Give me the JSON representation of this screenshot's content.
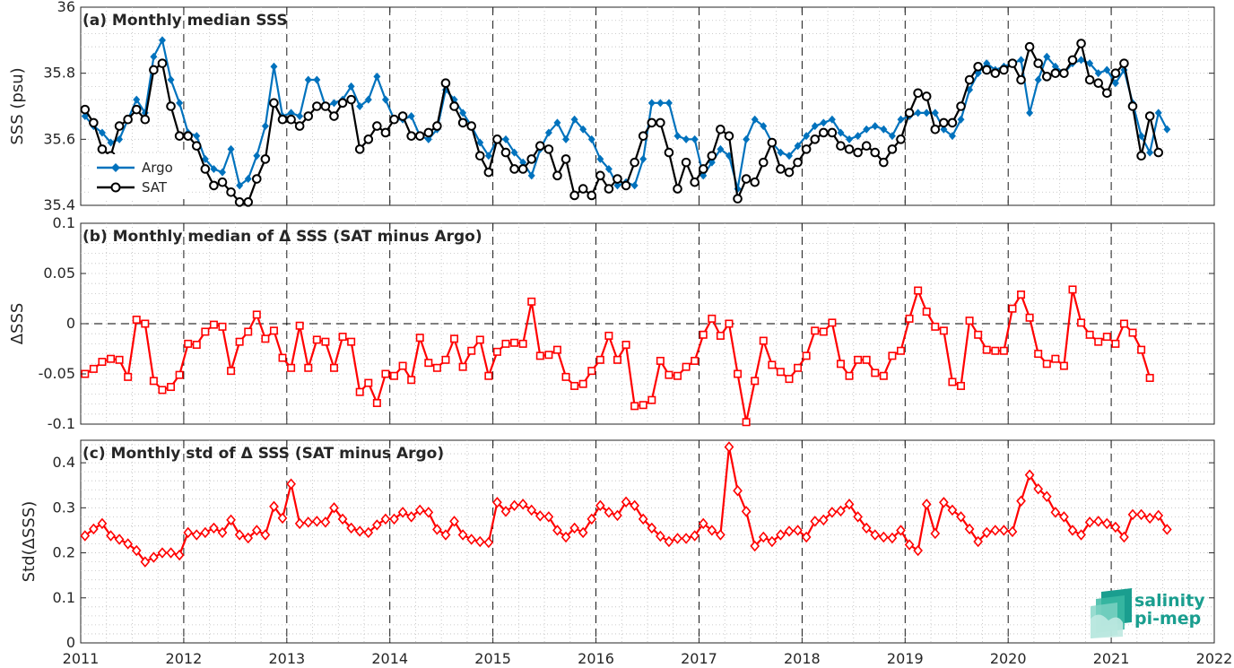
{
  "colors": {
    "argo": "#0072bd",
    "sat": "#000000",
    "delta": "#ff0000",
    "logo": "#1a9e8f"
  },
  "logo": {
    "line1": "salinity",
    "line2": "pi-mep"
  },
  "x_tick_labels": [
    "2011",
    "2012",
    "2013",
    "2014",
    "2015",
    "2016",
    "2017",
    "2018",
    "2019",
    "2020",
    "2021",
    "2022"
  ],
  "chart_data": [
    {
      "type": "line",
      "title": "(a) Monthly median SSS",
      "ylabel": "SSS (psu)",
      "xlim": [
        2011,
        2022
      ],
      "ylim": [
        35.4,
        36
      ],
      "yticks": [
        35.4,
        35.6,
        35.8,
        36
      ],
      "ytick_labels": [
        "35.4",
        "35.6",
        "35.8",
        "36"
      ],
      "grid": true,
      "legend": "left",
      "x_start": 2011.0,
      "x_step_months": 1,
      "series": [
        {
          "name": "Argo",
          "marker": "diamond-filled",
          "color": "#0072bd",
          "values": [
            35.67,
            35.64,
            35.62,
            35.59,
            35.6,
            35.66,
            35.72,
            35.68,
            35.85,
            35.9,
            35.78,
            35.71,
            35.62,
            35.61,
            35.54,
            35.51,
            35.5,
            35.57,
            35.46,
            35.48,
            35.55,
            35.64,
            35.82,
            35.67,
            35.68,
            35.67,
            35.78,
            35.78,
            35.7,
            35.71,
            35.72,
            35.76,
            35.7,
            35.72,
            35.79,
            35.72,
            35.66,
            35.66,
            35.67,
            35.61,
            35.6,
            35.63,
            35.75,
            35.72,
            35.68,
            35.64,
            35.59,
            35.55,
            35.6,
            35.6,
            35.56,
            35.53,
            35.49,
            35.57,
            35.62,
            35.65,
            35.6,
            35.66,
            35.63,
            35.6,
            35.54,
            35.51,
            35.46,
            35.47,
            35.46,
            35.54,
            35.71,
            35.71,
            35.71,
            35.61,
            35.6,
            35.6,
            35.49,
            35.53,
            35.57,
            35.55,
            35.45,
            35.6,
            35.66,
            35.64,
            35.59,
            35.56,
            35.55,
            35.58,
            35.61,
            35.64,
            35.65,
            35.66,
            35.62,
            35.6,
            35.61,
            35.63,
            35.64,
            35.63,
            35.61,
            35.66,
            35.67,
            35.68,
            35.68,
            35.68,
            35.63,
            35.61,
            35.66,
            35.75,
            35.8,
            35.83,
            35.81,
            35.82,
            35.83,
            35.84,
            35.68,
            35.78,
            35.85,
            35.82,
            35.8,
            35.83,
            35.84,
            35.83,
            35.8,
            35.81,
            35.77,
            35.81,
            35.71,
            35.61,
            35.56,
            35.68,
            35.63
          ]
        },
        {
          "name": "SAT",
          "marker": "circle-open",
          "color": "#000000",
          "values": [
            35.69,
            35.65,
            35.57,
            35.55,
            35.64,
            35.66,
            35.69,
            35.66,
            35.81,
            35.83,
            35.7,
            35.61,
            35.61,
            35.58,
            35.51,
            35.46,
            35.47,
            35.44,
            35.41,
            35.41,
            35.48,
            35.54,
            35.71,
            35.66,
            35.66,
            35.64,
            35.67,
            35.7,
            35.7,
            35.67,
            35.71,
            35.72,
            35.57,
            35.6,
            35.64,
            35.62,
            35.66,
            35.67,
            35.61,
            35.61,
            35.62,
            35.64,
            35.77,
            35.7,
            35.65,
            35.64,
            35.55,
            35.5,
            35.6,
            35.56,
            35.51,
            35.51,
            35.54,
            35.58,
            35.57,
            35.49,
            35.54,
            35.43,
            35.45,
            35.43,
            35.49,
            35.45,
            35.48,
            35.46,
            35.53,
            35.61,
            35.65,
            35.65,
            35.56,
            35.45,
            35.53,
            35.47,
            35.51,
            35.55,
            35.63,
            35.61,
            35.42,
            35.48,
            35.47,
            35.53,
            35.59,
            35.51,
            35.5,
            35.53,
            35.57,
            35.6,
            35.62,
            35.62,
            35.58,
            35.57,
            35.56,
            35.58,
            35.56,
            35.53,
            35.57,
            35.6,
            35.68,
            35.74,
            35.73,
            35.63,
            35.65,
            35.65,
            35.7,
            35.78,
            35.82,
            35.81,
            35.8,
            35.81,
            35.83,
            35.78,
            35.88,
            35.83,
            35.79,
            35.8,
            35.8,
            35.84,
            35.89,
            35.78,
            35.77,
            35.74,
            35.8,
            35.83,
            35.7,
            35.55,
            35.67,
            35.56
          ]
        }
      ]
    },
    {
      "type": "line",
      "title": "(b) Monthly median of Δ SSS (SAT minus Argo)",
      "ylabel": "ΔSSS",
      "xlim": [
        2011,
        2022
      ],
      "ylim": [
        -0.1,
        0.1
      ],
      "yticks": [
        -0.1,
        -0.05,
        0,
        0.05,
        0.1
      ],
      "ytick_labels": [
        "-0.1",
        "-0.05",
        "0",
        "0.05",
        "0.1"
      ],
      "grid": true,
      "reference_line": 0,
      "x_start": 2011.0,
      "x_step_months": 1,
      "series": [
        {
          "name": "",
          "marker": "square-open",
          "color": "#ff0000",
          "values": [
            -0.05,
            -0.045,
            -0.038,
            -0.035,
            -0.036,
            -0.053,
            0.004,
            0.0,
            -0.057,
            -0.066,
            -0.063,
            -0.051,
            -0.02,
            -0.021,
            -0.008,
            -0.001,
            -0.003,
            -0.047,
            -0.018,
            -0.008,
            0.009,
            -0.015,
            -0.007,
            -0.034,
            -0.044,
            -0.002,
            -0.044,
            -0.016,
            -0.018,
            -0.044,
            -0.013,
            -0.018,
            -0.068,
            -0.059,
            -0.079,
            -0.05,
            -0.052,
            -0.042,
            -0.056,
            -0.014,
            -0.039,
            -0.044,
            -0.036,
            -0.015,
            -0.043,
            -0.027,
            -0.016,
            -0.052,
            -0.028,
            -0.02,
            -0.019,
            -0.02,
            0.022,
            -0.032,
            -0.031,
            -0.026,
            -0.053,
            -0.062,
            -0.06,
            -0.047,
            -0.036,
            -0.012,
            -0.036,
            -0.021,
            -0.082,
            -0.081,
            -0.076,
            -0.037,
            -0.051,
            -0.052,
            -0.043,
            -0.037,
            -0.011,
            0.005,
            -0.012,
            0.0,
            -0.05,
            -0.098,
            -0.057,
            -0.017,
            -0.041,
            -0.048,
            -0.055,
            -0.044,
            -0.032,
            -0.007,
            -0.008,
            0.001,
            -0.04,
            -0.052,
            -0.036,
            -0.036,
            -0.049,
            -0.052,
            -0.032,
            -0.027,
            0.005,
            0.033,
            0.012,
            -0.003,
            -0.007,
            -0.058,
            -0.062,
            0.003,
            -0.011,
            -0.026,
            -0.027,
            -0.027,
            0.015,
            0.029,
            0.006,
            -0.03,
            -0.04,
            -0.035,
            -0.042,
            0.034,
            0.001,
            -0.011,
            -0.018,
            -0.013,
            -0.02,
            0.0,
            -0.009,
            -0.026,
            -0.054
          ]
        }
      ]
    },
    {
      "type": "line",
      "title": "(c) Monthly std of Δ SSS (SAT minus Argo)",
      "ylabel": "Std(ΔSSS)",
      "xlim": [
        2011,
        2022
      ],
      "ylim": [
        0,
        0.45
      ],
      "yticks": [
        0,
        0.1,
        0.2,
        0.3,
        0.4
      ],
      "ytick_labels": [
        "0",
        "0.1",
        "0.2",
        "0.3",
        "0.4"
      ],
      "grid": true,
      "x_start": 2011.0,
      "x_step_months": 1,
      "series": [
        {
          "name": "",
          "marker": "diamond-open",
          "color": "#ff0000",
          "values": [
            0.238,
            0.253,
            0.265,
            0.238,
            0.23,
            0.22,
            0.205,
            0.18,
            0.19,
            0.2,
            0.2,
            0.195,
            0.245,
            0.24,
            0.245,
            0.255,
            0.245,
            0.273,
            0.24,
            0.233,
            0.25,
            0.24,
            0.303,
            0.277,
            0.353,
            0.265,
            0.268,
            0.27,
            0.268,
            0.3,
            0.275,
            0.255,
            0.248,
            0.245,
            0.262,
            0.275,
            0.275,
            0.29,
            0.28,
            0.295,
            0.29,
            0.252,
            0.24,
            0.27,
            0.24,
            0.23,
            0.225,
            0.223,
            0.312,
            0.292,
            0.305,
            0.308,
            0.295,
            0.282,
            0.28,
            0.25,
            0.235,
            0.255,
            0.245,
            0.275,
            0.305,
            0.29,
            0.283,
            0.313,
            0.305,
            0.275,
            0.255,
            0.237,
            0.225,
            0.232,
            0.232,
            0.238,
            0.265,
            0.25,
            0.24,
            0.435,
            0.338,
            0.292,
            0.215,
            0.235,
            0.225,
            0.24,
            0.248,
            0.25,
            0.235,
            0.27,
            0.273,
            0.29,
            0.293,
            0.308,
            0.28,
            0.255,
            0.24,
            0.235,
            0.233,
            0.25,
            0.218,
            0.205,
            0.308,
            0.243,
            0.312,
            0.295,
            0.28,
            0.253,
            0.225,
            0.245,
            0.25,
            0.25,
            0.247,
            0.315,
            0.373,
            0.342,
            0.325,
            0.29,
            0.28,
            0.25,
            0.24,
            0.268,
            0.27,
            0.265,
            0.257,
            0.235,
            0.285,
            0.285,
            0.277,
            0.283,
            0.252
          ]
        }
      ]
    }
  ]
}
